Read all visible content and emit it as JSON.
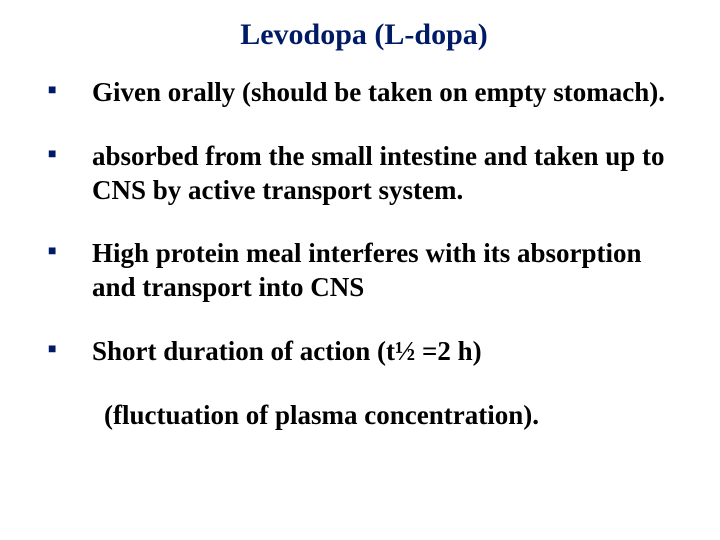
{
  "title_text": "Levodopa (L-dopa)",
  "title_color": "#001a66",
  "title_fontsize": 30,
  "body_fontsize": 27,
  "body_color": "#000000",
  "bullet_color": "#001a66",
  "bullets": [
    "Given orally (should be taken on empty stomach).",
    "absorbed from the small intestine and taken up to CNS by active transport system.",
    "High protein meal interferes with its absorption and transport into CNS",
    "Short duration of action (t½ =2 h)"
  ],
  "footer_text": "(fluctuation of plasma concentration)."
}
